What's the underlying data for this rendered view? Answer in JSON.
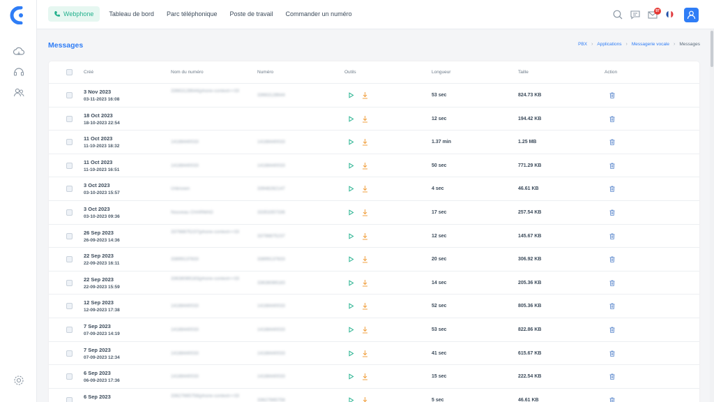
{
  "colors": {
    "accent": "#2f7df6",
    "green": "#21b08c",
    "download": "#f0a040"
  },
  "rail": {
    "logo_icon": "brand-logo-icon",
    "items": [
      {
        "icon": "cloud-icon"
      },
      {
        "icon": "headset-icon"
      },
      {
        "icon": "users-icon"
      }
    ],
    "settings_icon": "gear-icon"
  },
  "topnav": {
    "items": [
      {
        "label": "Webphone",
        "active": true
      },
      {
        "label": "Tableau de bord"
      },
      {
        "label": "Parc téléphonique"
      },
      {
        "label": "Poste de travail"
      },
      {
        "label": "Commander un numéro"
      }
    ],
    "icons": [
      "search-icon",
      "chat-icon",
      "mail-icon",
      "flag-fr-icon",
      "user-icon"
    ],
    "mail_badge": "97"
  },
  "page": {
    "title": "Messages",
    "breadcrumb": [
      "PBX",
      "Applications",
      "Messagerie vocale",
      "Messages"
    ]
  },
  "table": {
    "headers": {
      "created": "Créé",
      "name": "Nom du numéro",
      "number": "Numéro",
      "tools": "Outils",
      "length": "Longueur",
      "size": "Taille",
      "action": "Action"
    },
    "rows": [
      {
        "date": "3 Nov 2023",
        "time": "03-11-2023 16:08",
        "name": "33663128644(phone-context=+33",
        "number": "33663128644",
        "length": "53 sec",
        "size": "824.73 KB"
      },
      {
        "date": "18 Oct 2023",
        "time": "18-10-2023 22:54",
        "name": "",
        "number": "",
        "length": "12 sec",
        "size": "194.42 KB"
      },
      {
        "date": "11 Oct 2023",
        "time": "11-10-2023 18:32",
        "name": "14188440033",
        "number": "14188440033",
        "length": "1.37 min",
        "size": "1.25 MB"
      },
      {
        "date": "11 Oct 2023",
        "time": "11-10-2023 16:51",
        "name": "14188440033",
        "number": "14188440033",
        "length": "50 sec",
        "size": "771.29 KB"
      },
      {
        "date": "3 Oct 2023",
        "time": "03-10-2023 15:57",
        "name": "Unknown",
        "number": "33948262147",
        "length": "4 sec",
        "size": "46.61 KB"
      },
      {
        "date": "3 Oct 2023",
        "time": "03-10-2023 09:36",
        "name": "Nouveau CHARMAD",
        "number": "33353357336",
        "length": "17 sec",
        "size": "257.54 KB"
      },
      {
        "date": "26 Sep 2023",
        "time": "26-09-2023 14:36",
        "name": "33798875237(phone-context=+33",
        "number": "33798875237",
        "length": "12 sec",
        "size": "145.67 KB"
      },
      {
        "date": "22 Sep 2023",
        "time": "22-09-2023 16:11",
        "name": "33899137833",
        "number": "33899137833",
        "length": "20 sec",
        "size": "306.92 KB"
      },
      {
        "date": "22 Sep 2023",
        "time": "22-09-2023 15:59",
        "name": "33638089183(phone-context=+33",
        "number": "33638089183",
        "length": "14 sec",
        "size": "205.36 KB"
      },
      {
        "date": "12 Sep 2023",
        "time": "12-09-2023 17:38",
        "name": "14188440033",
        "number": "14188440033",
        "length": "52 sec",
        "size": "805.36 KB"
      },
      {
        "date": "7 Sep 2023",
        "time": "07-09-2023 14:19",
        "name": "14188440033",
        "number": "14188440033",
        "length": "53 sec",
        "size": "822.86 KB"
      },
      {
        "date": "7 Sep 2023",
        "time": "07-09-2023 12:34",
        "name": "14188440033",
        "number": "14188440033",
        "length": "41 sec",
        "size": "615.67 KB"
      },
      {
        "date": "6 Sep 2023",
        "time": "06-09-2023 17:36",
        "name": "14188440033",
        "number": "14188440033",
        "length": "15 sec",
        "size": "222.54 KB"
      },
      {
        "date": "6 Sep 2023",
        "time": "",
        "name": "33627665758(phone-context=+33",
        "number": "33627665758",
        "length": "5 sec",
        "size": "46.61 KB"
      }
    ]
  }
}
